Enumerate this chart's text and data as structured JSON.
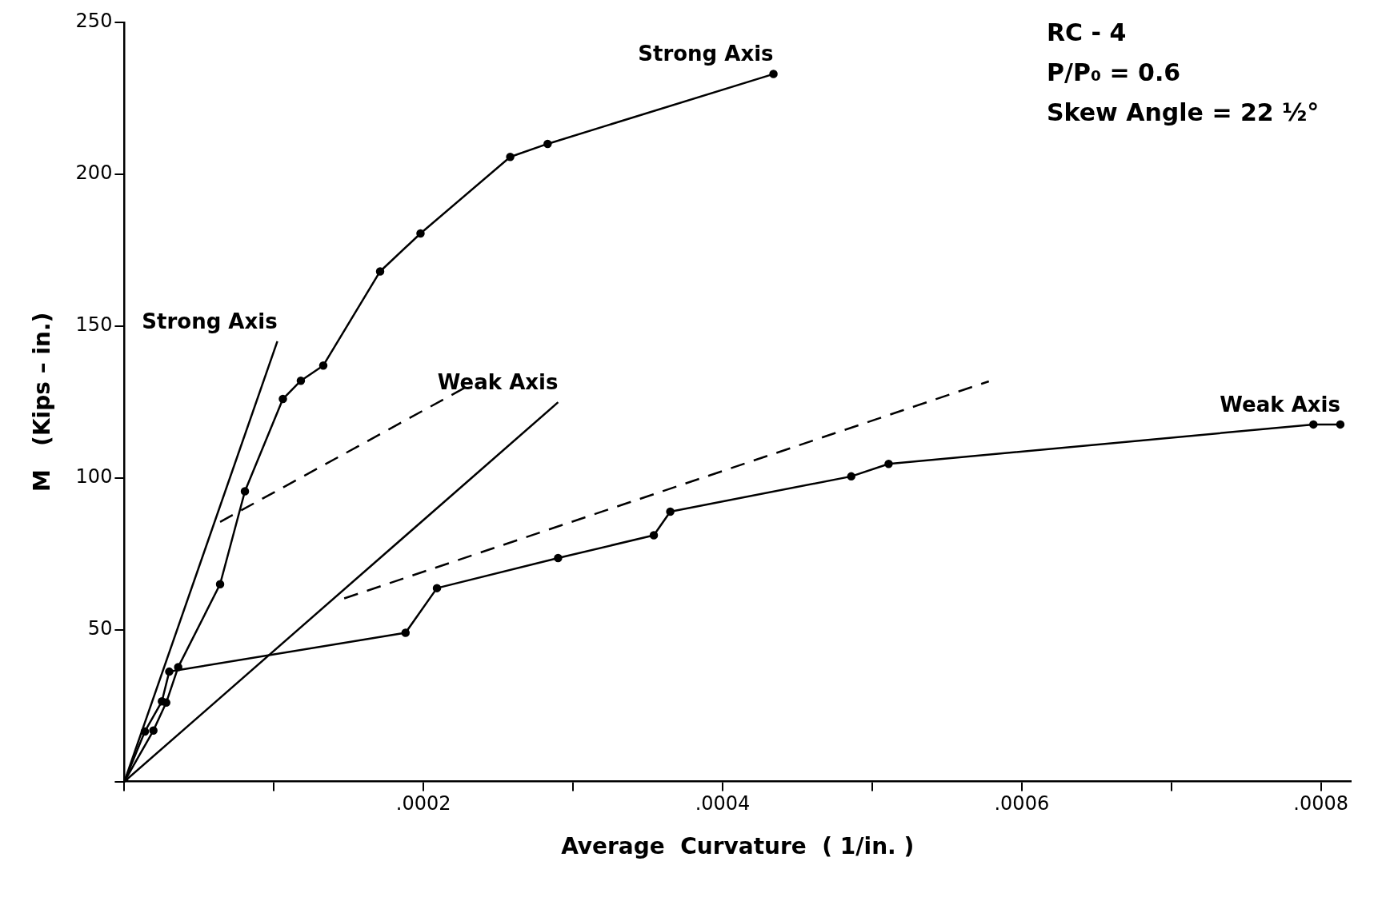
{
  "chart_data": {
    "type": "line",
    "xlabel": "Average  Curvature  ( 1/in. )",
    "ylabel": "M   (Kips – in.)",
    "xlim": [
      0,
      0.00082
    ],
    "ylim": [
      0,
      250
    ],
    "xticks": [
      {
        "value": 0,
        "label": null
      },
      {
        "value": 0.0001,
        "label": null
      },
      {
        "value": 0.0002,
        "label": ".0002"
      },
      {
        "value": 0.0003,
        "label": null
      },
      {
        "value": 0.0004,
        "label": ".0004"
      },
      {
        "value": 0.0005,
        "label": null
      },
      {
        "value": 0.0006,
        "label": ".0006"
      },
      {
        "value": 0.0007,
        "label": null
      },
      {
        "value": 0.0008,
        "label": ".0008"
      }
    ],
    "yticks": [
      {
        "value": 0,
        "label": null
      },
      50,
      100,
      150,
      200,
      250
    ],
    "grid": false,
    "legend": false,
    "series": [
      {
        "name": "Strong Axis",
        "color": "#000000",
        "marker": "circle",
        "line_style": "solid",
        "x": [
          0,
          1.94e-05,
          2.8e-05,
          3.6e-05,
          6.4e-05,
          8.06e-05,
          0.000106,
          0.000118,
          0.000133,
          0.000171,
          0.000198,
          0.000258,
          0.000283,
          0.000434
        ],
        "values": [
          0,
          16.8,
          26,
          37.7,
          65,
          95.6,
          126,
          132,
          137,
          168,
          180.5,
          205.7,
          210,
          233
        ]
      },
      {
        "name": "Weak Axis",
        "color": "#000000",
        "marker": "circle",
        "line_style": "solid",
        "x": [
          0,
          1.37e-05,
          2.51e-05,
          3e-05,
          0.000188,
          0.000209,
          0.00029,
          0.000354,
          0.000365,
          0.000486,
          0.000511,
          0.000795,
          0.000813
        ],
        "values": [
          0,
          16.5,
          26.4,
          36.2,
          49,
          63.7,
          73.6,
          81.1,
          88.9,
          100.5,
          104.6,
          117.6,
          117.6
        ]
      },
      {
        "name": "Strong Axis",
        "color": "#000000",
        "marker": "none",
        "line_style": "solid",
        "x": [
          0,
          0.0001023
        ],
        "values": [
          0,
          145
        ]
      },
      {
        "name": "Weak Axis",
        "color": "#000000",
        "marker": "none",
        "line_style": "solid",
        "x": [
          0,
          0.00029
        ],
        "values": [
          0,
          124.9
        ]
      },
      {
        "color": "#000000",
        "marker": "none",
        "line_style": "dashed",
        "x": [
          6.4e-05,
          0.000231
        ],
        "values": [
          85.5,
          130.6
        ]
      },
      {
        "color": "#000000",
        "marker": "none",
        "line_style": "dashed",
        "x": [
          0.000147,
          0.000578
        ],
        "values": [
          60.3,
          131.8
        ]
      }
    ],
    "annotations": [
      "RC - 4",
      "P/P₀ = 0.6",
      "Skew Angle = 22 ½°"
    ]
  }
}
